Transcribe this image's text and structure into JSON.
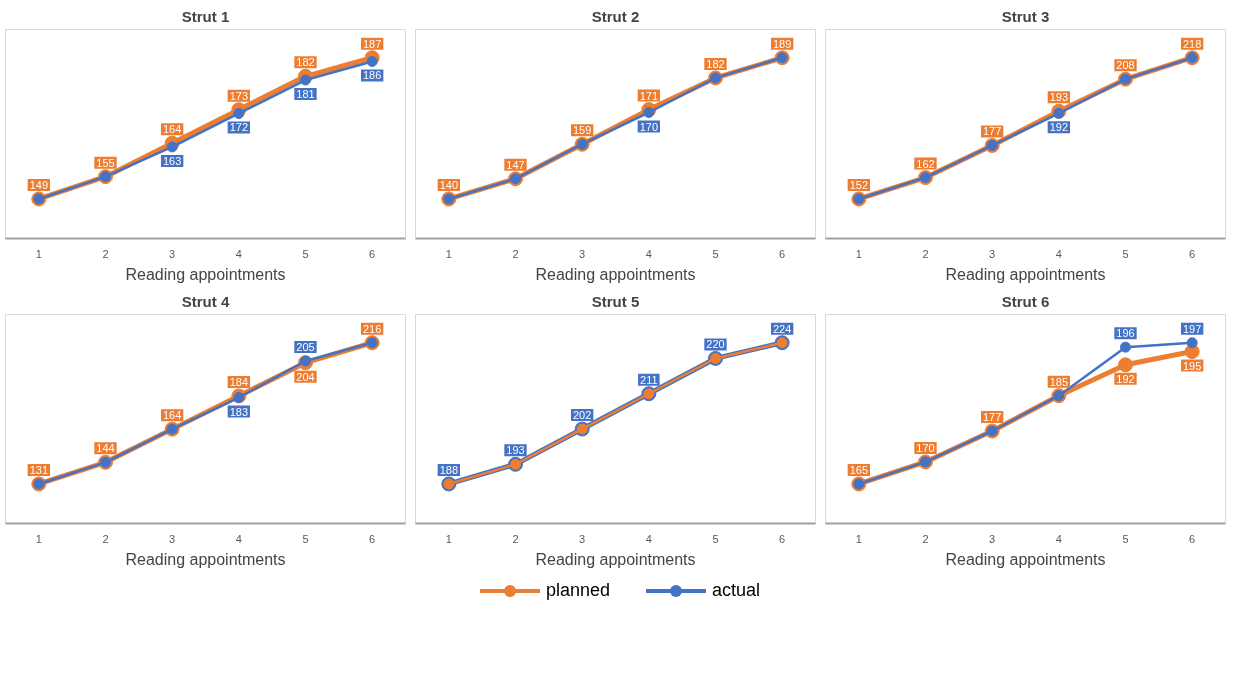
{
  "chart_data": [
    {
      "type": "line",
      "title": "Strut 1",
      "xlabel": "Reading appointments",
      "categories": [
        "1",
        "2",
        "3",
        "4",
        "5",
        "6"
      ],
      "marker": "circle",
      "tick_labels": "x",
      "legend": "bottom",
      "series": [
        {
          "name": "planned",
          "color": "#ed7d31",
          "values": [
            149,
            155,
            164,
            173,
            182,
            187
          ],
          "value_labels": [
            "149",
            "155",
            "164",
            "173",
            "182",
            "187"
          ]
        },
        {
          "name": "actual",
          "color": "#4472c4",
          "values": [
            149,
            155,
            163,
            172,
            181,
            186
          ],
          "value_labels": [
            null,
            null,
            "163",
            "172",
            "181",
            "186"
          ]
        }
      ]
    },
    {
      "type": "line",
      "title": "Strut 2",
      "xlabel": "Reading appointments",
      "categories": [
        "1",
        "2",
        "3",
        "4",
        "5",
        "6"
      ],
      "marker": "circle",
      "tick_labels": "x",
      "legend": "bottom",
      "series": [
        {
          "name": "planned",
          "color": "#ed7d31",
          "values": [
            140,
            147,
            159,
            171,
            182,
            189
          ],
          "value_labels": [
            "140",
            "147",
            "159",
            "171",
            "182",
            "189"
          ]
        },
        {
          "name": "actual",
          "color": "#4472c4",
          "values": [
            140,
            147,
            159,
            170,
            182,
            189
          ],
          "value_labels": [
            null,
            null,
            null,
            "170",
            null,
            null
          ]
        }
      ]
    },
    {
      "type": "line",
      "title": "Strut 3",
      "xlabel": "Reading appointments",
      "categories": [
        "1",
        "2",
        "3",
        "4",
        "5",
        "6"
      ],
      "marker": "circle",
      "tick_labels": "x",
      "legend": "bottom",
      "series": [
        {
          "name": "planned",
          "color": "#ed7d31",
          "values": [
            152,
            162,
            177,
            193,
            208,
            218
          ],
          "value_labels": [
            "152",
            "162",
            "177",
            "193",
            "208",
            "218"
          ]
        },
        {
          "name": "actual",
          "color": "#4472c4",
          "values": [
            152,
            162,
            177,
            192,
            208,
            218
          ],
          "value_labels": [
            null,
            null,
            null,
            "192",
            null,
            null
          ]
        }
      ]
    },
    {
      "type": "line",
      "title": "Strut 4",
      "xlabel": "Reading appointments",
      "categories": [
        "1",
        "2",
        "3",
        "4",
        "5",
        "6"
      ],
      "marker": "circle",
      "tick_labels": "x",
      "legend": "bottom",
      "series": [
        {
          "name": "planned",
          "color": "#ed7d31",
          "values": [
            131,
            144,
            164,
            184,
            204,
            216
          ],
          "value_labels": [
            "131",
            "144",
            "164",
            "184",
            "204",
            "216"
          ]
        },
        {
          "name": "actual",
          "color": "#4472c4",
          "values": [
            131,
            144,
            164,
            183,
            205,
            216
          ],
          "value_labels": [
            null,
            null,
            null,
            "183",
            "205",
            null
          ]
        }
      ]
    },
    {
      "type": "line",
      "title": "Strut 5",
      "xlabel": "Reading appointments",
      "categories": [
        "1",
        "2",
        "3",
        "4",
        "5",
        "6"
      ],
      "marker": "circle",
      "tick_labels": "x",
      "legend": "bottom",
      "series": [
        {
          "name": "actual",
          "color": "#4472c4",
          "values": [
            188,
            193,
            202,
            211,
            220,
            224
          ],
          "value_labels": [
            "188",
            "193",
            "202",
            "211",
            "220",
            "224"
          ]
        },
        {
          "name": "planned",
          "color": "#ed7d31",
          "values": [
            188,
            193,
            202,
            211,
            220,
            224
          ],
          "value_labels": [
            null,
            null,
            null,
            null,
            null,
            null
          ]
        }
      ]
    },
    {
      "type": "line",
      "title": "Strut 6",
      "xlabel": "Reading appointments",
      "categories": [
        "1",
        "2",
        "3",
        "4",
        "5",
        "6"
      ],
      "marker": "circle",
      "tick_labels": "x",
      "legend": "bottom",
      "series": [
        {
          "name": "planned",
          "color": "#ed7d31",
          "values": [
            165,
            170,
            177,
            185,
            192,
            195
          ],
          "value_labels": [
            "165",
            "170",
            "177",
            "185",
            "192",
            "195"
          ]
        },
        {
          "name": "actual",
          "color": "#4472c4",
          "values": [
            165,
            170,
            177,
            185,
            196,
            197
          ],
          "value_labels": [
            null,
            null,
            null,
            null,
            "196",
            "197"
          ]
        }
      ]
    }
  ]
}
